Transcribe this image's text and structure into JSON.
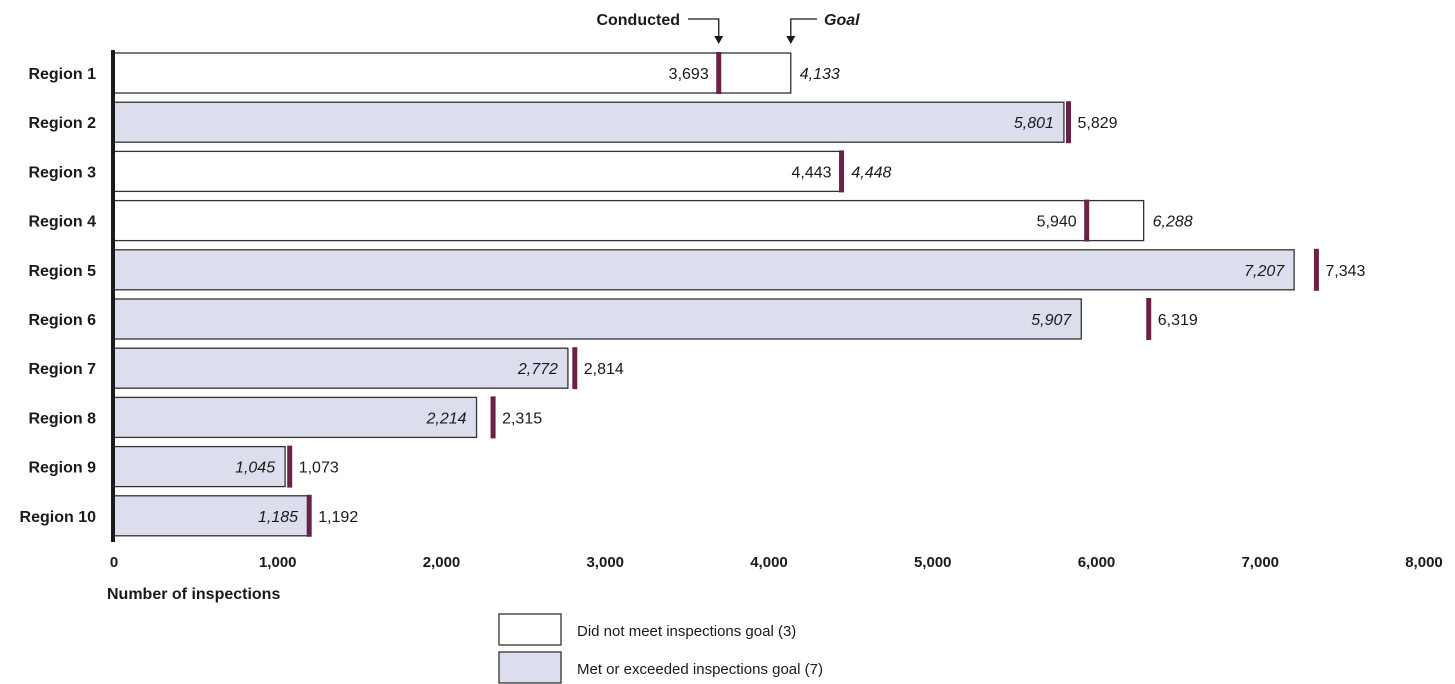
{
  "chart_data": {
    "type": "bar",
    "categories": [
      "Region 1",
      "Region 2",
      "Region 3",
      "Region 4",
      "Region 5",
      "Region 6",
      "Region 7",
      "Region 8",
      "Region 9",
      "Region 10"
    ],
    "series": [
      {
        "name": "Goal",
        "values": [
          4133,
          5801,
          4448,
          6288,
          7207,
          5907,
          2772,
          2214,
          1045,
          1185
        ],
        "labels": [
          "4,133",
          "5,801",
          "4,448",
          "6,288",
          "7,207",
          "5,907",
          "2,772",
          "2,214",
          "1,045",
          "1,185"
        ]
      },
      {
        "name": "Conducted",
        "values": [
          3693,
          5829,
          4443,
          5940,
          7343,
          6319,
          2814,
          2315,
          1073,
          1192
        ],
        "labels": [
          "3,693",
          "5,829",
          "4,443",
          "5,940",
          "7,343",
          "6,319",
          "2,814",
          "2,315",
          "1,073",
          "1,192"
        ]
      }
    ],
    "met_goal": [
      false,
      true,
      false,
      false,
      true,
      true,
      true,
      true,
      true,
      true
    ],
    "xlabel": "Number of inspections",
    "xlim": [
      0,
      8000
    ],
    "xticks": [
      0,
      1000,
      2000,
      3000,
      4000,
      5000,
      6000,
      7000,
      8000
    ],
    "xtick_labels": [
      "0",
      "1,000",
      "2,000",
      "3,000",
      "4,000",
      "5,000",
      "6,000",
      "7,000",
      "8,000"
    ],
    "callouts": {
      "conducted": "Conducted",
      "goal": "Goal"
    },
    "legend": {
      "placement": "bottom-center",
      "entries": [
        {
          "label": "Did not meet inspections goal (3)",
          "color": "#ffffff"
        },
        {
          "label": "Met or exceeded inspections goal (7)",
          "color": "#dcdeee"
        }
      ]
    },
    "colors": {
      "met_fill": "#dcdeee",
      "not_met_fill": "#ffffff",
      "marker": "#6b2148",
      "outline": "#333333"
    }
  }
}
